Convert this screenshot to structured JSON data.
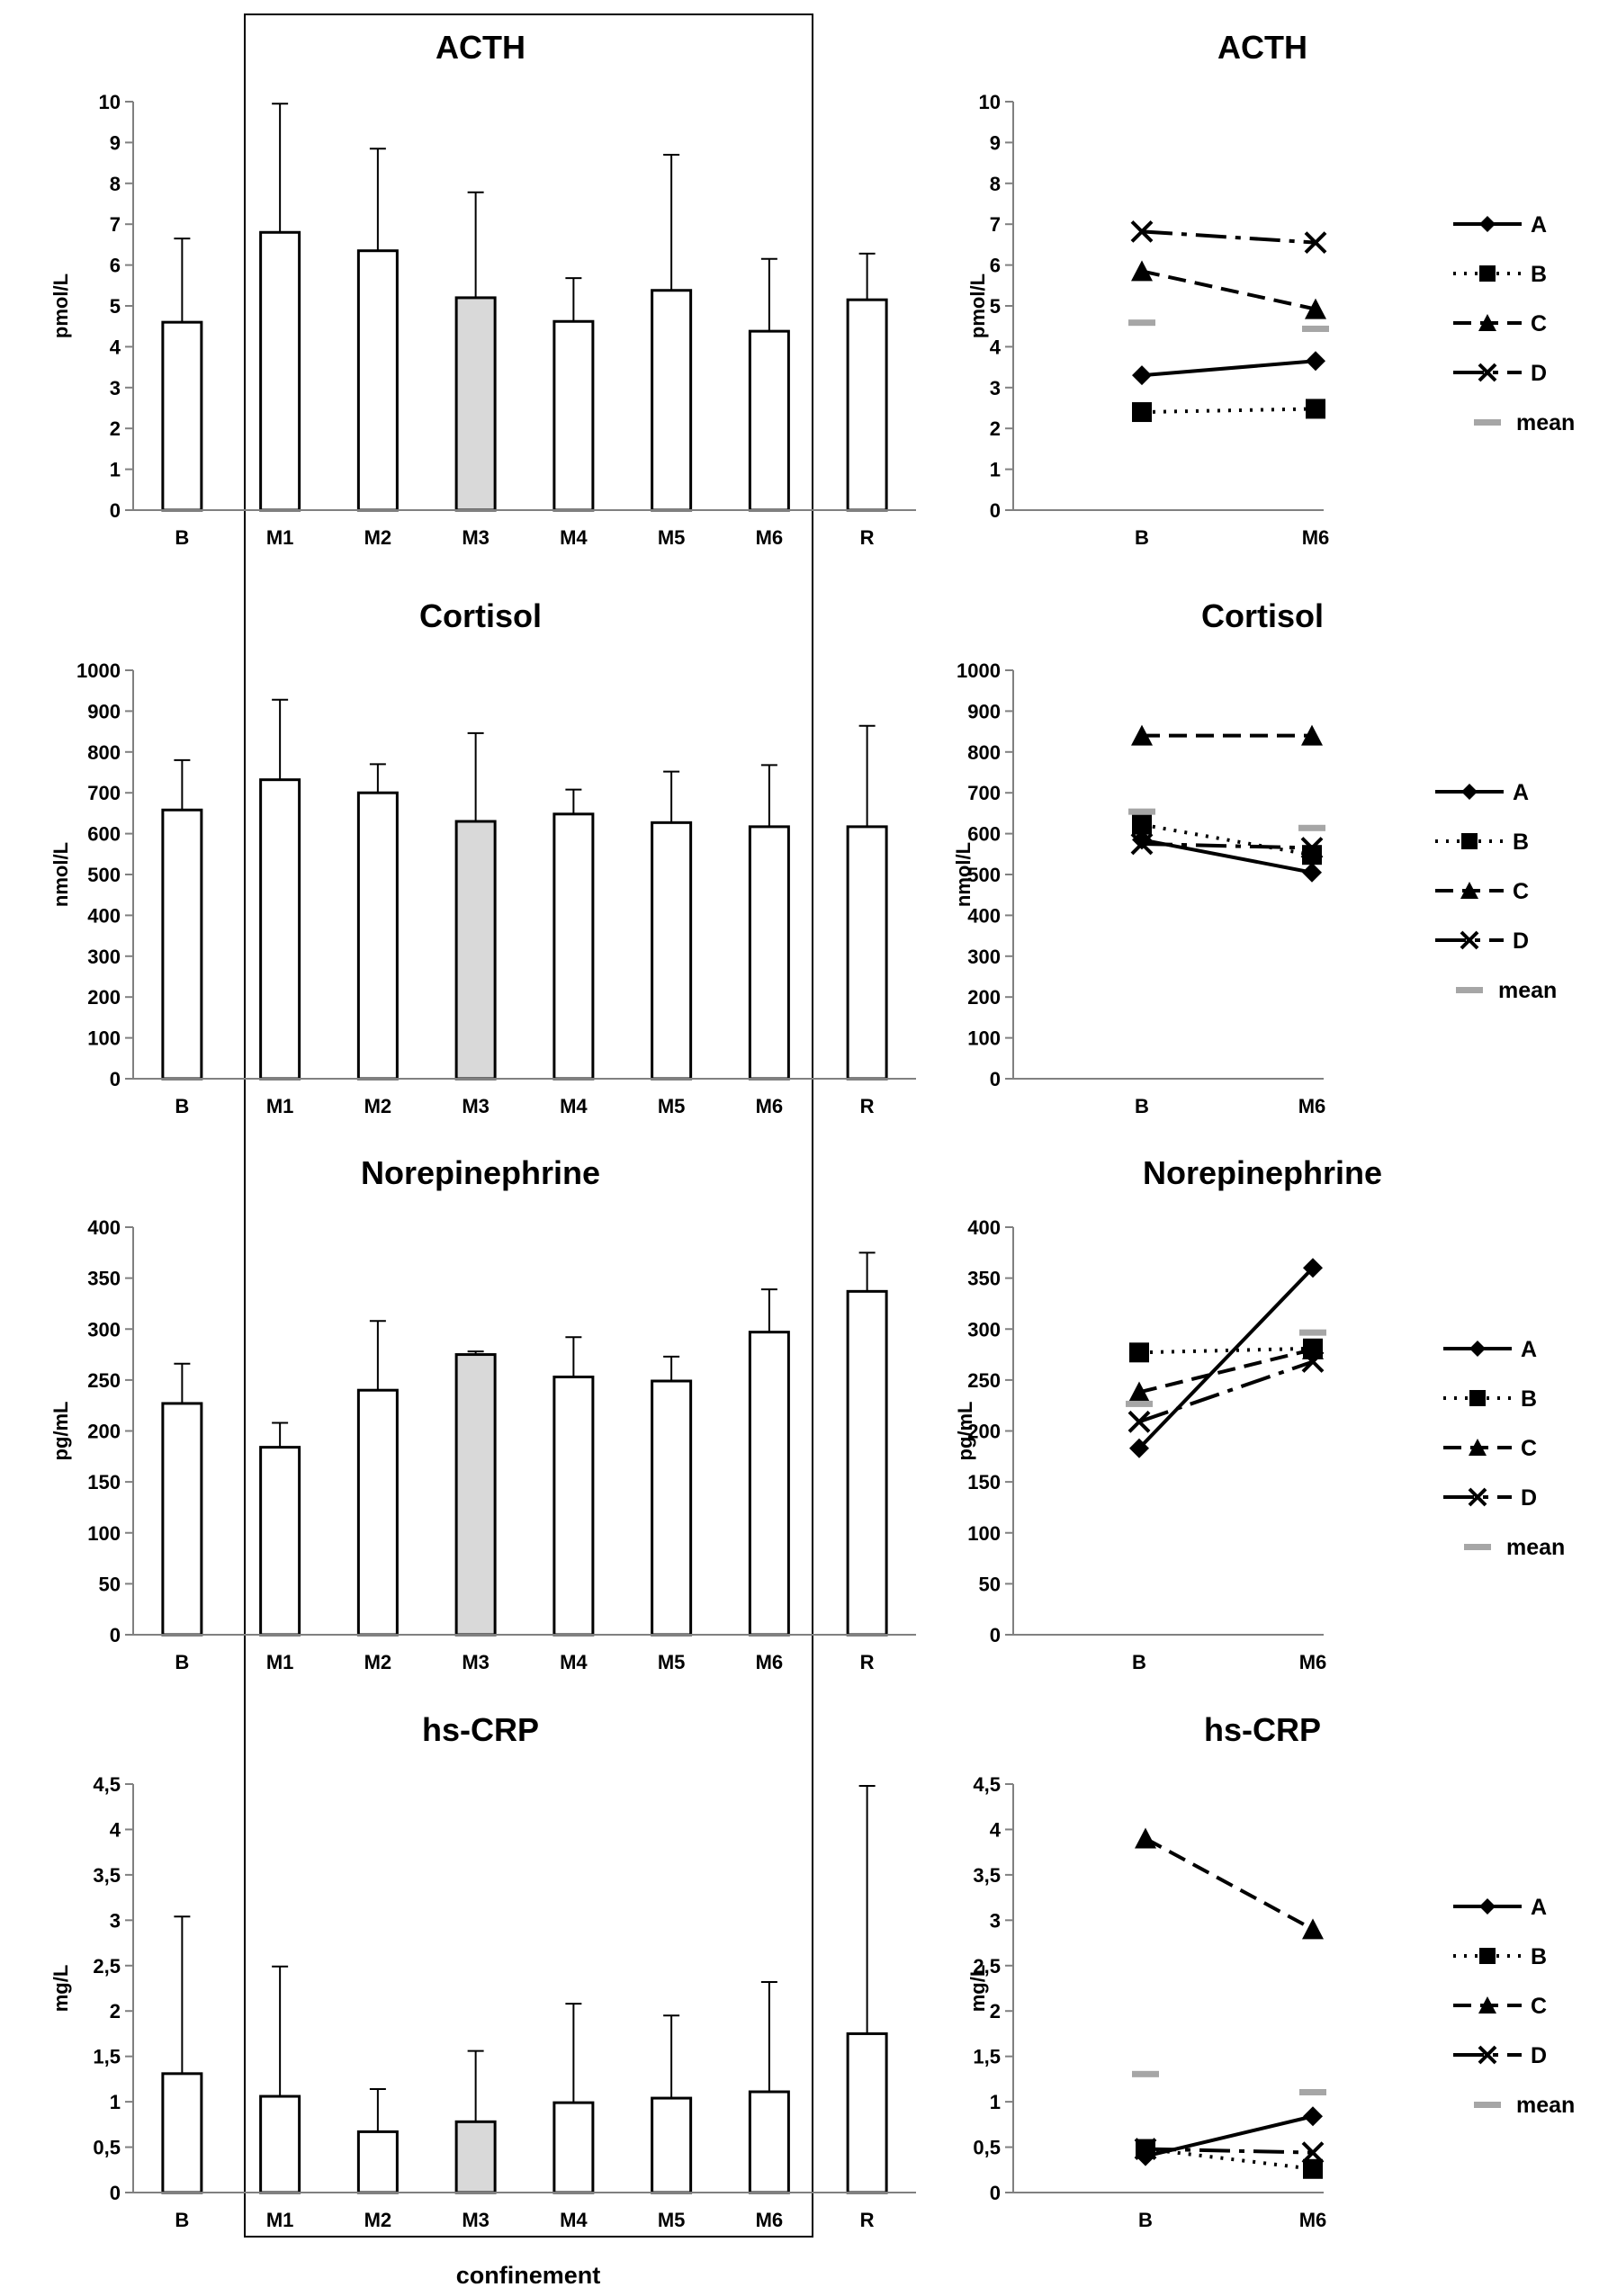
{
  "figure": {
    "confinement_label": "confinement"
  },
  "chart_data": [
    {
      "type": "bar",
      "title": "ACTH",
      "ylabel": "pmol/L",
      "xlabel": "",
      "categories": [
        "B",
        "M1",
        "M2",
        "M3",
        "M4",
        "M5",
        "M6",
        "R"
      ],
      "values": [
        4.6,
        6.8,
        6.35,
        5.2,
        4.62,
        5.38,
        4.38,
        5.15
      ],
      "error_upper": [
        6.65,
        9.95,
        8.85,
        7.78,
        5.68,
        8.7,
        6.15,
        6.28
      ],
      "highlight_category": "M3",
      "ylim": [
        0,
        10
      ],
      "yticks": [
        "0",
        "1",
        "2",
        "3",
        "4",
        "5",
        "6",
        "7",
        "8",
        "9",
        "10"
      ],
      "ytick_values": [
        0,
        1,
        2,
        3,
        4,
        5,
        6,
        7,
        8,
        9,
        10
      ]
    },
    {
      "type": "line",
      "title": "ACTH",
      "ylabel": "pmol/L",
      "xlabel": "",
      "categories": [
        "B",
        "M6"
      ],
      "series": [
        {
          "name": "A",
          "values": [
            3.3,
            3.65
          ]
        },
        {
          "name": "B",
          "values": [
            2.4,
            2.48
          ]
        },
        {
          "name": "C",
          "values": [
            5.85,
            4.92
          ]
        },
        {
          "name": "D",
          "values": [
            6.82,
            6.55
          ]
        },
        {
          "name": "mean",
          "values": [
            4.6,
            4.45
          ]
        }
      ],
      "ylim": [
        0,
        10
      ],
      "yticks": [
        "0",
        "1",
        "2",
        "3",
        "4",
        "5",
        "6",
        "7",
        "8",
        "9",
        "10"
      ],
      "ytick_values": [
        0,
        1,
        2,
        3,
        4,
        5,
        6,
        7,
        8,
        9,
        10
      ]
    },
    {
      "type": "bar",
      "title": "Cortisol",
      "ylabel": "nmol/L",
      "xlabel": "",
      "categories": [
        "B",
        "M1",
        "M2",
        "M3",
        "M4",
        "M5",
        "M6",
        "R"
      ],
      "values": [
        658,
        732,
        700,
        630,
        648,
        627,
        617,
        617
      ],
      "error_upper": [
        780,
        928,
        770,
        846,
        708,
        752,
        768,
        864
      ],
      "highlight_category": "M3",
      "ylim": [
        0,
        1000
      ],
      "yticks": [
        "0",
        "100",
        "200",
        "300",
        "400",
        "500",
        "600",
        "700",
        "800",
        "900",
        "1000"
      ],
      "ytick_values": [
        0,
        100,
        200,
        300,
        400,
        500,
        600,
        700,
        800,
        900,
        1000
      ]
    },
    {
      "type": "line",
      "title": "Cortisol",
      "ylabel": "nmol/L",
      "xlabel": "",
      "categories": [
        "B",
        "M6"
      ],
      "series": [
        {
          "name": "A",
          "values": [
            585,
            505
          ]
        },
        {
          "name": "B",
          "values": [
            622,
            548
          ]
        },
        {
          "name": "C",
          "values": [
            840,
            840
          ]
        },
        {
          "name": "D",
          "values": [
            575,
            565
          ]
        },
        {
          "name": "mean",
          "values": [
            655,
            615
          ]
        }
      ],
      "ylim": [
        0,
        1000
      ],
      "yticks": [
        "0",
        "100",
        "200",
        "300",
        "400",
        "500",
        "600",
        "700",
        "800",
        "900",
        "1000"
      ],
      "ytick_values": [
        0,
        100,
        200,
        300,
        400,
        500,
        600,
        700,
        800,
        900,
        1000
      ]
    },
    {
      "type": "bar",
      "title": "Norepinephrine",
      "ylabel": "pg/mL",
      "xlabel": "",
      "categories": [
        "B",
        "M1",
        "M2",
        "M3",
        "M4",
        "M5",
        "M6",
        "R"
      ],
      "values": [
        227,
        184,
        240,
        275,
        253,
        249,
        297,
        337
      ],
      "error_upper": [
        266,
        208,
        308,
        278,
        292,
        273,
        339,
        375
      ],
      "highlight_category": "M3",
      "ylim": [
        0,
        400
      ],
      "yticks": [
        "0",
        "50",
        "100",
        "150",
        "200",
        "250",
        "300",
        "350",
        "400"
      ],
      "ytick_values": [
        0,
        50,
        100,
        150,
        200,
        250,
        300,
        350,
        400
      ]
    },
    {
      "type": "line",
      "title": "Norepinephrine",
      "ylabel": "pg/mL",
      "xlabel": "",
      "categories": [
        "B",
        "M6"
      ],
      "series": [
        {
          "name": "A",
          "values": [
            183,
            360
          ]
        },
        {
          "name": "B",
          "values": [
            277,
            281
          ]
        },
        {
          "name": "C",
          "values": [
            238,
            280
          ]
        },
        {
          "name": "D",
          "values": [
            209,
            268
          ]
        },
        {
          "name": "mean",
          "values": [
            227,
            297
          ]
        }
      ],
      "ylim": [
        0,
        400
      ],
      "yticks": [
        "0",
        "50",
        "100",
        "150",
        "200",
        "250",
        "300",
        "350",
        "400"
      ],
      "ytick_values": [
        0,
        50,
        100,
        150,
        200,
        250,
        300,
        350,
        400
      ]
    },
    {
      "type": "bar",
      "title": "hs-CRP",
      "ylabel": "mg/L",
      "xlabel": "confinement",
      "categories": [
        "B",
        "M1",
        "M2",
        "M3",
        "M4",
        "M5",
        "M6",
        "R"
      ],
      "values": [
        1.31,
        1.06,
        0.67,
        0.78,
        0.99,
        1.04,
        1.11,
        1.75
      ],
      "error_upper": [
        3.04,
        2.49,
        1.14,
        1.56,
        2.08,
        1.95,
        2.32,
        4.48
      ],
      "highlight_category": "M3",
      "ylim": [
        0,
        4.5
      ],
      "yticks": [
        "0",
        "0,5",
        "1",
        "1,5",
        "2",
        "2,5",
        "3",
        "3,5",
        "4",
        "4,5"
      ],
      "ytick_values": [
        0,
        0.5,
        1,
        1.5,
        2,
        2.5,
        3,
        3.5,
        4,
        4.5
      ]
    },
    {
      "type": "line",
      "title": "hs-CRP",
      "ylabel": "mg/L",
      "xlabel": "",
      "categories": [
        "B",
        "M6"
      ],
      "series": [
        {
          "name": "A",
          "values": [
            0.4,
            0.84
          ]
        },
        {
          "name": "B",
          "values": [
            0.48,
            0.26
          ]
        },
        {
          "name": "C",
          "values": [
            3.9,
            2.9
          ]
        },
        {
          "name": "D",
          "values": [
            0.48,
            0.44
          ]
        },
        {
          "name": "mean",
          "values": [
            1.31,
            1.11
          ]
        }
      ],
      "ylim": [
        0,
        4.5
      ],
      "yticks": [
        "0",
        "0,5",
        "1",
        "1,5",
        "2",
        "2,5",
        "3",
        "3,5",
        "4",
        "4,5"
      ],
      "ytick_values": [
        0,
        0.5,
        1,
        1.5,
        2,
        2.5,
        3,
        3.5,
        4,
        4.5
      ]
    }
  ],
  "colors": {
    "axis": "#808080",
    "bar_fill": "#ffffff",
    "bar_highlight": "#d9d9d9",
    "bar_stroke": "#000000",
    "series_line": "#000000",
    "mean_marker": "#a6a6a6",
    "confinement_box": "#000000"
  }
}
